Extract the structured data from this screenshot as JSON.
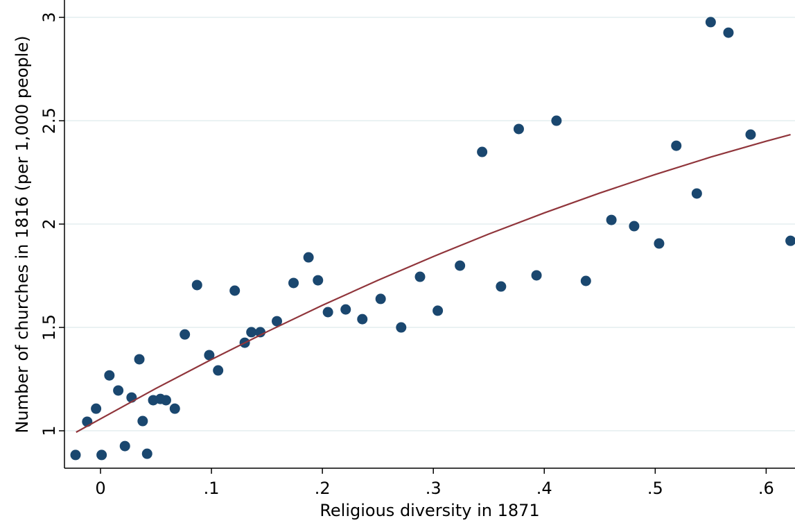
{
  "chart_data": {
    "type": "scatter",
    "x_label": "Religious diversity in 1871",
    "y_label": "Number of churches in 1816 (per 1,000 people)",
    "x": [
      -0.0225,
      -0.012,
      -0.004,
      0.001,
      0.008,
      0.016,
      0.022,
      0.028,
      0.035,
      0.038,
      0.042,
      0.0475,
      0.054,
      0.059,
      0.067,
      0.076,
      0.087,
      0.098,
      0.106,
      0.121,
      0.13,
      0.136,
      0.144,
      0.159,
      0.174,
      0.1875,
      0.196,
      0.205,
      0.221,
      0.236,
      0.2525,
      0.271,
      0.288,
      0.304,
      0.324,
      0.344,
      0.361,
      0.377,
      0.393,
      0.411,
      0.4375,
      0.4605,
      0.481,
      0.5035,
      0.519,
      0.5375,
      0.55,
      0.566,
      0.586,
      0.622
    ],
    "values": [
      0.883,
      1.044,
      1.107,
      0.883,
      1.268,
      1.195,
      0.926,
      1.161,
      1.346,
      1.047,
      0.889,
      1.148,
      1.154,
      1.148,
      1.107,
      1.466,
      1.705,
      1.366,
      1.292,
      1.678,
      1.426,
      1.477,
      1.477,
      1.53,
      1.715,
      1.839,
      1.728,
      1.574,
      1.587,
      1.54,
      1.638,
      1.5,
      1.745,
      1.581,
      1.799,
      2.349,
      1.698,
      2.46,
      1.752,
      2.5,
      1.725,
      2.02,
      1.99,
      1.906,
      2.379,
      2.148,
      2.977,
      2.926,
      2.433,
      1.919
    ],
    "color": "#1a476f",
    "fit": {
      "x": [
        -0.022,
        0.05,
        0.1,
        0.15,
        0.2,
        0.25,
        0.3,
        0.35,
        0.4,
        0.45,
        0.5,
        0.55,
        0.6,
        0.622
      ],
      "values": [
        0.993,
        1.205,
        1.345,
        1.479,
        1.607,
        1.728,
        1.843,
        1.952,
        2.054,
        2.15,
        2.24,
        2.324,
        2.401,
        2.433
      ],
      "color": "#90353b"
    },
    "xlim": [
      -0.0325,
      0.626
    ],
    "ylim": [
      0.819,
      3.084
    ],
    "xticks": [
      0,
      {
        "value": 0.1,
        "label": ".1"
      },
      {
        "value": 0.2,
        "label": ".2"
      },
      {
        "value": 0.3,
        "label": ".3"
      },
      {
        "value": 0.4,
        "label": ".4"
      },
      {
        "value": 0.5,
        "label": ".5"
      },
      {
        "value": 0.6,
        "label": ".6"
      }
    ],
    "yticks": [
      1,
      1.5,
      2,
      2.5,
      3
    ],
    "grid": true
  }
}
